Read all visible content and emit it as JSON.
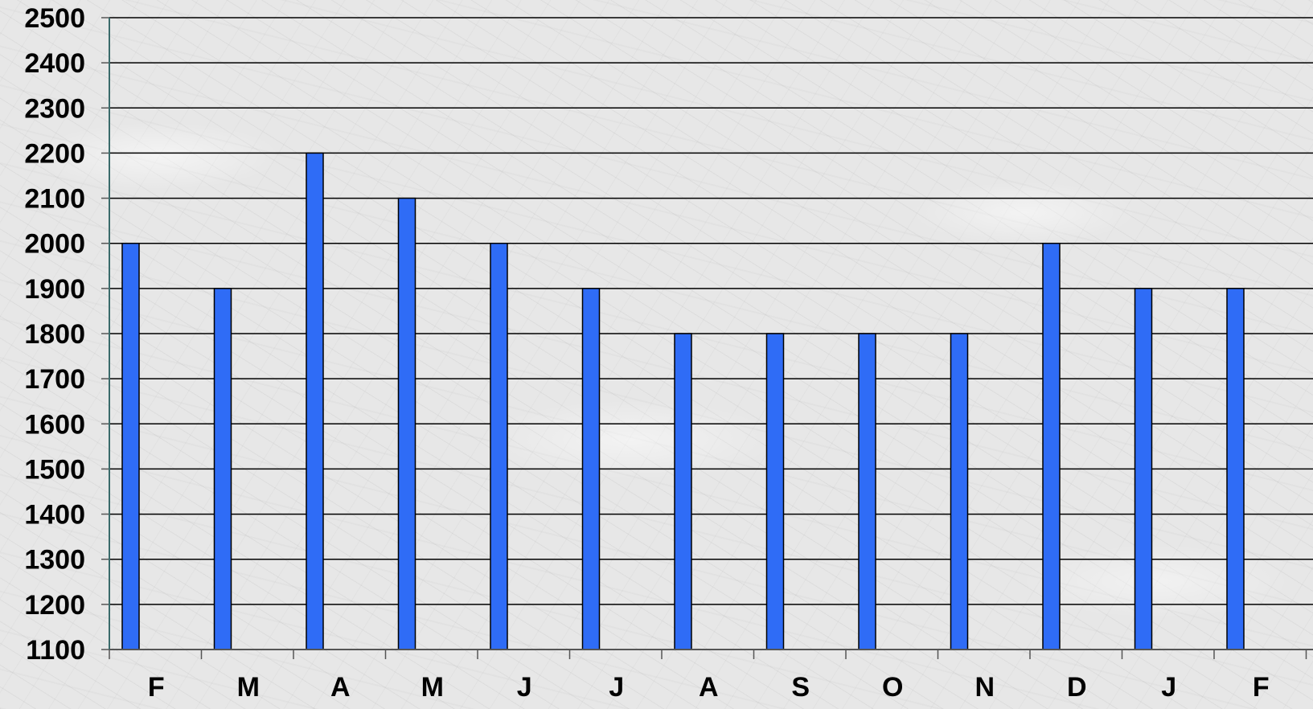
{
  "chart_data": {
    "type": "bar",
    "categories": [
      "F",
      "M",
      "A",
      "M",
      "J",
      "J",
      "A",
      "S",
      "O",
      "N",
      "D",
      "J",
      "F"
    ],
    "series": [
      {
        "values": [
          2000,
          1900,
          2200,
          2100,
          2000,
          1900,
          1800,
          1800,
          1800,
          1800,
          2000,
          1900,
          1900
        ],
        "color": "#2f6cf6"
      }
    ],
    "ylim": [
      1100,
      2500
    ],
    "yticks": [
      1100,
      1200,
      1300,
      1400,
      1500,
      1600,
      1700,
      1800,
      1900,
      2000,
      2100,
      2200,
      2300,
      2400,
      2500
    ],
    "grid": true,
    "legend": "none",
    "title": "",
    "xlabel": "",
    "ylabel": ""
  }
}
